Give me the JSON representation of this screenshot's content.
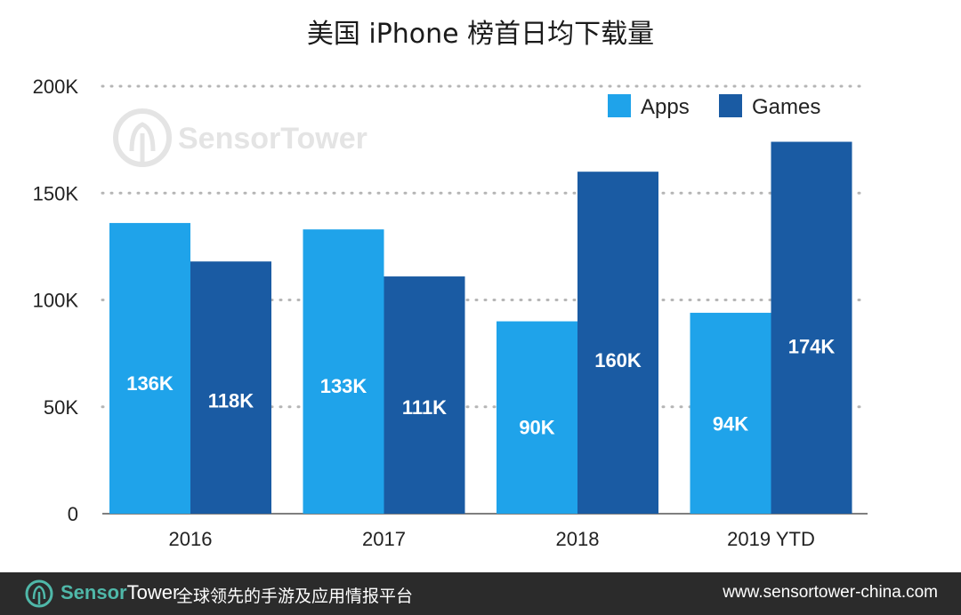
{
  "chart_data": {
    "type": "bar",
    "title": "美国 iPhone 榜首日均下载量",
    "categories": [
      "2016",
      "2017",
      "2018",
      "2019 YTD"
    ],
    "series": [
      {
        "name": "Apps",
        "color": "#1fa3ea",
        "values": [
          136000,
          133000,
          90000,
          94000
        ],
        "labels": [
          "136K",
          "133K",
          "90K",
          "94K"
        ]
      },
      {
        "name": "Games",
        "color": "#1a5ba3",
        "values": [
          118000,
          111000,
          160000,
          174000
        ],
        "labels": [
          "118K",
          "111K",
          "160K",
          "174K"
        ]
      }
    ],
    "ylim": [
      0,
      200000
    ],
    "yticks": [
      0,
      50000,
      100000,
      150000,
      200000
    ],
    "ytick_labels": [
      "0",
      "50K",
      "100K",
      "150K",
      "200K"
    ],
    "grid": "dotted horizontal",
    "legend_position": "top-right"
  },
  "watermark": {
    "text": "SensorTower",
    "icon": "sensortower-logo-icon"
  },
  "footer": {
    "brand_part1": "Sensor",
    "brand_part2": "Tower",
    "tagline": "全球领先的手游及应用情报平台",
    "url": "www.sensortower-china.com",
    "icon": "sensortower-logo-icon",
    "accent": "#4fb8a9",
    "background": "#2b2b2b"
  }
}
